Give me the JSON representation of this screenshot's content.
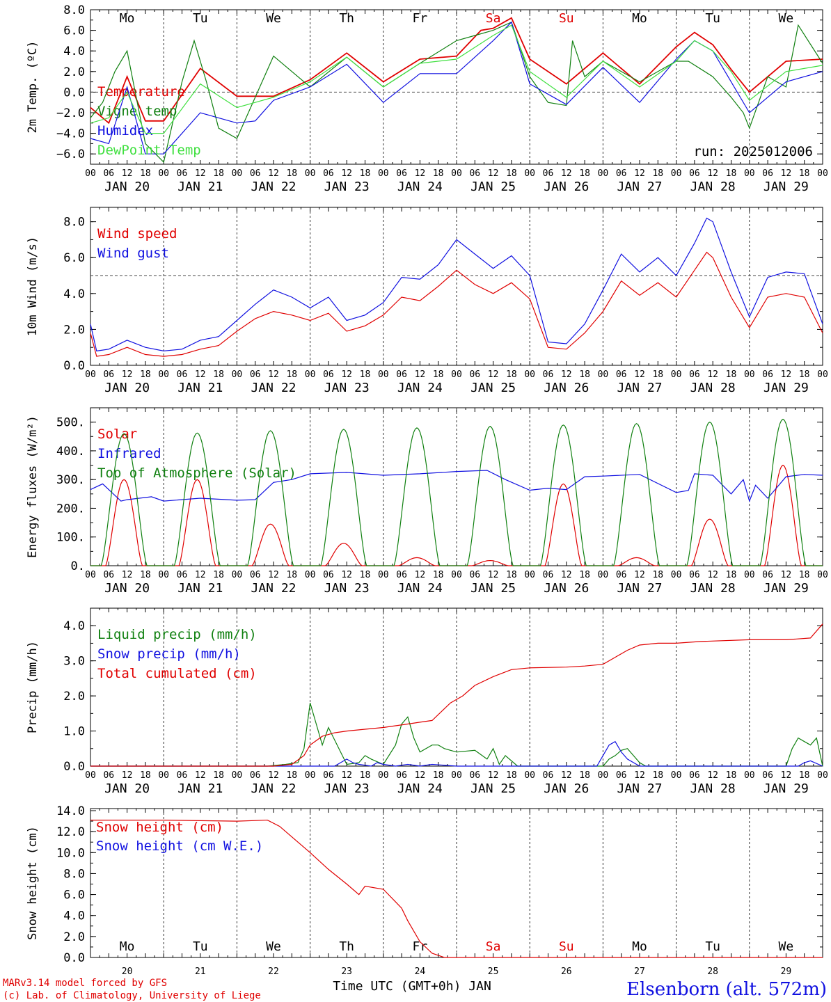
{
  "chart_data": [
    {
      "type": "line",
      "ylabel": "2m Temp. (ºC)",
      "ylim": [
        -7,
        8
      ],
      "yticks": [
        -6,
        -4,
        -2,
        0,
        2,
        4,
        6,
        8
      ],
      "ytick_labels": [
        "−6.0",
        "−4.0",
        "−2.0",
        "0.0",
        "2.0",
        "4.0",
        "6.0",
        "8.0"
      ],
      "reference_line": 0,
      "day_labels": [
        "Mo",
        "Tu",
        "We",
        "Th",
        "Fr",
        "Sa",
        "Su",
        "Mo",
        "Tu",
        "We"
      ],
      "day_label_colors": [
        "#000000",
        "#000000",
        "#000000",
        "#000000",
        "#000000",
        "#e00000",
        "#e00000",
        "#000000",
        "#000000",
        "#000000"
      ],
      "annotation": "run: 2025012006",
      "series": [
        {
          "name": "Temperature",
          "color": "#e00000",
          "x": [
            0,
            6,
            12,
            18,
            24,
            36,
            48,
            60,
            72,
            84,
            96,
            108,
            120,
            128,
            132,
            138,
            144,
            156,
            168,
            180,
            192,
            198,
            204,
            210,
            216,
            228,
            240
          ],
          "values": [
            -1.5,
            -3.0,
            1.5,
            -2.8,
            -2.8,
            2.3,
            -0.4,
            -0.4,
            1.2,
            3.8,
            1.0,
            3.2,
            3.5,
            6.0,
            6.2,
            7.2,
            3.2,
            0.8,
            3.8,
            0.8,
            4.4,
            5.8,
            4.6,
            2.2,
            0.0,
            3.0,
            3.2
          ]
        },
        {
          "name": "Vigne temp",
          "color": "#108010",
          "x": [
            0,
            4,
            6,
            8,
            12,
            18,
            24,
            30,
            34,
            38,
            42,
            48,
            60,
            72,
            84,
            96,
            108,
            120,
            126,
            132,
            138,
            144,
            150,
            156,
            158,
            162,
            168,
            180,
            192,
            196,
            204,
            210,
            214,
            216,
            222,
            228,
            232,
            240
          ],
          "values": [
            -2.5,
            -1.0,
            0.5,
            2.0,
            4.0,
            -5.0,
            -6.8,
            1.0,
            5.0,
            1.0,
            -3.5,
            -4.5,
            3.5,
            0.5,
            3.4,
            0.5,
            2.8,
            5.0,
            5.5,
            6.0,
            6.8,
            1.5,
            -1.0,
            -1.3,
            5.0,
            1.5,
            3.0,
            1.0,
            3.0,
            3.0,
            1.5,
            -0.5,
            -2.0,
            -3.5,
            1.5,
            0.5,
            6.5,
            2.8
          ]
        },
        {
          "name": "Humidex",
          "color": "#1010e0",
          "x": [
            0,
            6,
            12,
            18,
            24,
            36,
            48,
            54,
            60,
            72,
            84,
            96,
            108,
            120,
            132,
            138,
            144,
            156,
            168,
            180,
            192,
            198,
            204,
            210,
            216,
            228,
            240
          ],
          "values": [
            -4.5,
            -5.0,
            0.5,
            -6.0,
            -6.0,
            -2.0,
            -3.0,
            -2.8,
            -0.8,
            0.5,
            2.7,
            -1.0,
            1.8,
            1.8,
            5.0,
            6.8,
            0.8,
            -1.2,
            2.4,
            -1.0,
            3.2,
            5.0,
            4.0,
            1.0,
            -2.0,
            1.0,
            2.0
          ]
        },
        {
          "name": "DewPoint Temp",
          "color": "#40e040",
          "x": [
            0,
            6,
            12,
            18,
            24,
            36,
            48,
            60,
            72,
            84,
            96,
            108,
            120,
            132,
            138,
            144,
            156,
            168,
            180,
            192,
            198,
            204,
            210,
            216,
            228,
            240
          ],
          "values": [
            -3.0,
            -2.5,
            0.0,
            -4.0,
            -4.0,
            0.8,
            -1.5,
            -0.5,
            1.0,
            3.4,
            0.5,
            2.8,
            3.2,
            5.5,
            6.5,
            2.0,
            -0.5,
            3.0,
            0.5,
            3.0,
            5.0,
            4.0,
            2.0,
            -0.8,
            2.0,
            2.6
          ]
        }
      ]
    },
    {
      "type": "line",
      "ylabel": "10m Wind (m/s)",
      "ylim": [
        0,
        8.8
      ],
      "yticks": [
        0,
        2,
        4,
        6,
        8
      ],
      "ytick_labels": [
        "0.0",
        "2.0",
        "4.0",
        "6.0",
        "8.0"
      ],
      "reference_line": 5,
      "series": [
        {
          "name": "Wind speed",
          "color": "#e00000",
          "x": [
            0,
            2,
            6,
            12,
            18,
            24,
            30,
            36,
            42,
            48,
            54,
            60,
            66,
            72,
            78,
            84,
            90,
            96,
            102,
            108,
            114,
            120,
            126,
            132,
            138,
            144,
            150,
            156,
            162,
            168,
            174,
            180,
            186,
            192,
            198,
            202,
            204,
            210,
            216,
            222,
            228,
            234,
            240
          ],
          "values": [
            1.8,
            0.5,
            0.6,
            1.0,
            0.6,
            0.5,
            0.6,
            0.9,
            1.1,
            1.9,
            2.6,
            3.0,
            2.8,
            2.5,
            2.9,
            1.9,
            2.2,
            2.8,
            3.8,
            3.6,
            4.4,
            5.3,
            4.5,
            4.0,
            4.6,
            3.7,
            1.0,
            0.9,
            1.8,
            3.0,
            4.7,
            3.9,
            4.6,
            3.8,
            5.3,
            6.3,
            6.0,
            3.8,
            2.1,
            3.8,
            4.0,
            3.8,
            1.8
          ]
        },
        {
          "name": "Wind gust",
          "color": "#1010e0",
          "x": [
            0,
            2,
            6,
            12,
            18,
            24,
            30,
            36,
            42,
            48,
            54,
            60,
            66,
            72,
            78,
            84,
            90,
            96,
            102,
            108,
            114,
            120,
            126,
            132,
            138,
            144,
            150,
            156,
            162,
            168,
            174,
            180,
            186,
            192,
            198,
            202,
            204,
            210,
            216,
            222,
            228,
            234,
            240
          ],
          "values": [
            2.3,
            0.8,
            0.9,
            1.4,
            1.0,
            0.8,
            0.9,
            1.4,
            1.6,
            2.5,
            3.4,
            4.2,
            3.8,
            3.2,
            3.8,
            2.5,
            2.8,
            3.5,
            4.9,
            4.8,
            5.6,
            7.0,
            6.2,
            5.4,
            6.1,
            5.0,
            1.3,
            1.2,
            2.3,
            4.2,
            6.2,
            5.2,
            6.0,
            5.0,
            6.8,
            8.2,
            8.0,
            5.2,
            2.7,
            4.9,
            5.2,
            5.1,
            2.3
          ]
        }
      ]
    },
    {
      "type": "line",
      "ylabel": "Energy fluxes (W/m²)",
      "ylim": [
        0,
        550
      ],
      "yticks": [
        0,
        100,
        200,
        300,
        400,
        500
      ],
      "ytick_labels": [
        "0.",
        "100.",
        "200.",
        "300.",
        "400.",
        "500."
      ],
      "series": [
        {
          "name": "Solar",
          "color": "#e00000",
          "peaks": [
            [
              11,
              300
            ],
            [
              35,
              300
            ],
            [
              59,
              145
            ],
            [
              83,
              78
            ],
            [
              107,
              28
            ],
            [
              131,
              18
            ],
            [
              155,
              285
            ],
            [
              179,
              28
            ],
            [
              203,
              162
            ],
            [
              227,
              350
            ]
          ]
        },
        {
          "name": "Infrared",
          "color": "#1010e0",
          "x": [
            0,
            4,
            8,
            10,
            12,
            20,
            24,
            36,
            48,
            54,
            60,
            66,
            72,
            84,
            96,
            108,
            120,
            130,
            136,
            144,
            150,
            156,
            162,
            168,
            180,
            192,
            196,
            198,
            204,
            210,
            214,
            216,
            218,
            222,
            228,
            234,
            240
          ],
          "values": [
            265,
            285,
            245,
            225,
            230,
            240,
            225,
            235,
            228,
            230,
            290,
            300,
            320,
            325,
            315,
            320,
            328,
            332,
            300,
            263,
            270,
            265,
            310,
            312,
            318,
            255,
            262,
            320,
            315,
            250,
            300,
            225,
            280,
            235,
            310,
            318,
            315
          ]
        },
        {
          "name": "Top of Atmosphere (Solar)",
          "color": "#108010",
          "peaks": [
            [
              11,
              460
            ],
            [
              35,
              462
            ],
            [
              59,
              470
            ],
            [
              83,
              475
            ],
            [
              107,
              480
            ],
            [
              131,
              485
            ],
            [
              155,
              490
            ],
            [
              179,
              495
            ],
            [
              203,
              500
            ],
            [
              227,
              510
            ]
          ]
        }
      ]
    },
    {
      "type": "line",
      "ylabel": "Precip (mm/h)",
      "ylim": [
        0,
        4.5
      ],
      "yticks": [
        0,
        1,
        2,
        3,
        4
      ],
      "ytick_labels": [
        "0.0",
        "1.0",
        "2.0",
        "3.0",
        "4.0"
      ],
      "series": [
        {
          "name": "Liquid precip (mm/h)",
          "color": "#108010",
          "x": [
            0,
            58,
            64,
            68,
            70,
            72,
            74,
            76,
            78,
            84,
            88,
            90,
            92,
            96,
            100,
            102,
            104,
            106,
            108,
            112,
            114,
            116,
            120,
            126,
            130,
            132,
            134,
            136,
            140,
            168,
            170,
            172,
            174,
            176,
            178,
            180,
            182,
            228,
            230,
            232,
            234,
            236,
            238,
            240
          ],
          "values": [
            0,
            0,
            0.05,
            0.1,
            0.5,
            1.8,
            1.2,
            0.6,
            1.1,
            0.05,
            0.1,
            0.3,
            0.2,
            0.05,
            0.6,
            1.2,
            1.4,
            0.8,
            0.4,
            0.6,
            0.6,
            0.5,
            0.4,
            0.45,
            0.2,
            0.5,
            0.05,
            0.3,
            0,
            0,
            0.2,
            0.3,
            0.45,
            0.5,
            0.3,
            0.1,
            0,
            0,
            0.5,
            0.8,
            0.7,
            0.6,
            0.8,
            0
          ]
        },
        {
          "name": "Snow precip (mm/h)",
          "color": "#1010e0",
          "x": [
            0,
            80,
            82,
            84,
            86,
            88,
            92,
            94,
            96,
            100,
            104,
            108,
            112,
            120,
            166,
            168,
            170,
            172,
            174,
            176,
            180,
            232,
            234,
            236,
            240
          ],
          "values": [
            0,
            0,
            0.1,
            0.2,
            0.1,
            0.05,
            0,
            0.1,
            0.05,
            0,
            0.05,
            0,
            0.05,
            0,
            0,
            0.3,
            0.6,
            0.7,
            0.4,
            0.2,
            0,
            0,
            0.1,
            0.15,
            0
          ]
        },
        {
          "name": "Total cumulated (cm)",
          "color": "#e00000",
          "x": [
            0,
            60,
            66,
            70,
            72,
            76,
            80,
            84,
            90,
            96,
            100,
            104,
            108,
            112,
            118,
            122,
            126,
            132,
            138,
            144,
            156,
            162,
            168,
            172,
            176,
            180,
            186,
            192,
            200,
            216,
            228,
            236,
            240
          ],
          "values": [
            0,
            0,
            0.05,
            0.3,
            0.6,
            0.85,
            0.95,
            1.0,
            1.05,
            1.1,
            1.15,
            1.2,
            1.25,
            1.3,
            1.8,
            2.0,
            2.3,
            2.55,
            2.75,
            2.8,
            2.82,
            2.85,
            2.9,
            3.1,
            3.3,
            3.45,
            3.5,
            3.5,
            3.55,
            3.6,
            3.6,
            3.65,
            4.05
          ]
        }
      ]
    },
    {
      "type": "line",
      "ylabel": "Snow height (cm)",
      "ylim": [
        0,
        14.2
      ],
      "yticks": [
        0,
        2,
        4,
        6,
        8,
        10,
        12,
        14
      ],
      "ytick_labels": [
        "0.0",
        "2.0",
        "4.0",
        "6.0",
        "8.0",
        "10.0",
        "12.0",
        "14.0"
      ],
      "day_labels": [
        "Mo",
        "Tu",
        "We",
        "Th",
        "Fr",
        "Sa",
        "Su",
        "Mo",
        "Tu",
        "We"
      ],
      "day_label_colors": [
        "#000000",
        "#000000",
        "#000000",
        "#000000",
        "#000000",
        "#e00000",
        "#e00000",
        "#000000",
        "#000000",
        "#000000"
      ],
      "day_numbers": [
        "20",
        "21",
        "22",
        "23",
        "24",
        "25",
        "26",
        "27",
        "28",
        "29"
      ],
      "xlabel": "Time UTC (GMT+0h) JAN",
      "series": [
        {
          "name": "Snow height (cm)",
          "color": "#e00000",
          "x": [
            0,
            24,
            48,
            58,
            62,
            66,
            72,
            78,
            84,
            88,
            90,
            96,
            100,
            102,
            104,
            108,
            112,
            116,
            120,
            240
          ],
          "values": [
            13.1,
            13.1,
            13.0,
            13.1,
            12.5,
            11.5,
            10.0,
            8.4,
            7.0,
            6.0,
            6.8,
            6.5,
            5.3,
            4.7,
            3.5,
            1.5,
            0.4,
            0.0,
            0.0,
            0.0
          ]
        },
        {
          "name": "Snow height (cm W.E.)",
          "color": "#1010e0",
          "x": [],
          "values": []
        }
      ]
    }
  ],
  "x_axis": {
    "hour_labels": [
      "00",
      "06",
      "12",
      "18"
    ],
    "final_label": "00",
    "day_labels": [
      "JAN 20",
      "JAN 21",
      "JAN 22",
      "JAN 23",
      "JAN 24",
      "JAN 25",
      "JAN 26",
      "JAN 27",
      "JAN 28",
      "JAN 29"
    ]
  },
  "footer": {
    "credit_line1": "MARv3.14 model forced by GFS",
    "credit_line2": "(c) Lab. of Climatology, University of Liege",
    "station": "Elsenborn (alt. 572m)"
  },
  "colors": {
    "red": "#e00000",
    "green": "#108010",
    "blue": "#1010e0",
    "lightgreen": "#40e040"
  }
}
